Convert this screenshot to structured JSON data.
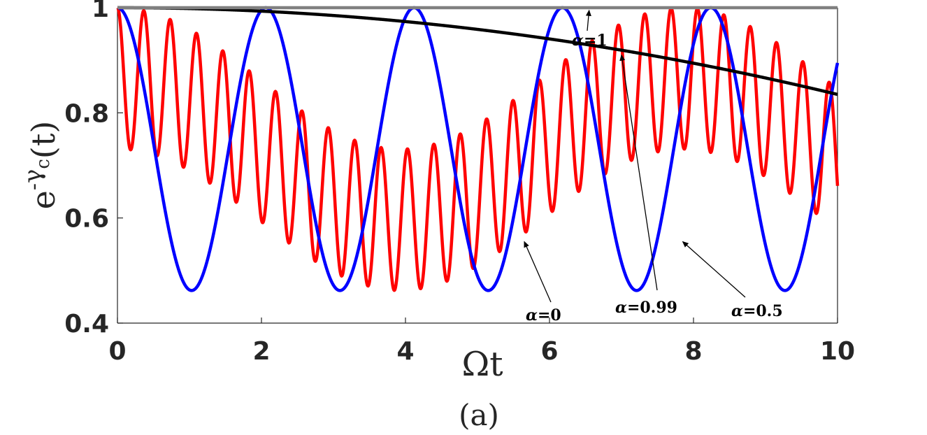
{
  "chart_data": {
    "type": "line",
    "xlabel": "Ωt",
    "ylabel": {
      "base": "e",
      "sup_minus": "-",
      "gamma": "γ",
      "sub": "c",
      "arg": "(t)"
    },
    "caption": "(a)",
    "xlim": [
      0,
      10
    ],
    "ylim": [
      0.4,
      1.0
    ],
    "x_ticks": [
      0,
      2,
      4,
      6,
      8,
      10
    ],
    "x_tick_labels": [
      "0",
      "2",
      "4",
      "6",
      "8",
      "10"
    ],
    "y_ticks": [
      0.4,
      0.6,
      0.8,
      1.0
    ],
    "y_tick_labels": [
      "0.4",
      "0.6",
      "0.8",
      "1"
    ],
    "grid": false,
    "series": [
      {
        "alpha": "1",
        "color": "#808080",
        "model": "constant",
        "value": 1.0
      },
      {
        "alpha": "0.99",
        "color": "#000000",
        "model": "quadratic_decay",
        "end_value": 0.835
      },
      {
        "alpha": "0.5",
        "color": "#0000ff",
        "model": "cosine_oscillation",
        "min": 0.462,
        "period": 2.06
      },
      {
        "alpha": "0",
        "color": "#ff0000",
        "model": "double_cosine_oscillation",
        "min": 0.462,
        "omega": [
          8.18,
          8.98
        ]
      }
    ],
    "annotations": [
      {
        "text_prefix": "α",
        "text_value": "=1",
        "arrow_to": [
          6.55,
          0.995
        ]
      },
      {
        "text_prefix": "α",
        "text_value": "=0",
        "arrow_to": [
          5.65,
          0.555
        ]
      },
      {
        "text_prefix": "α",
        "text_value": "=0.99",
        "arrow_to": [
          7.0,
          0.91
        ]
      },
      {
        "text_prefix": "α",
        "text_value": "=0.5",
        "arrow_to": [
          7.85,
          0.555
        ]
      }
    ]
  }
}
